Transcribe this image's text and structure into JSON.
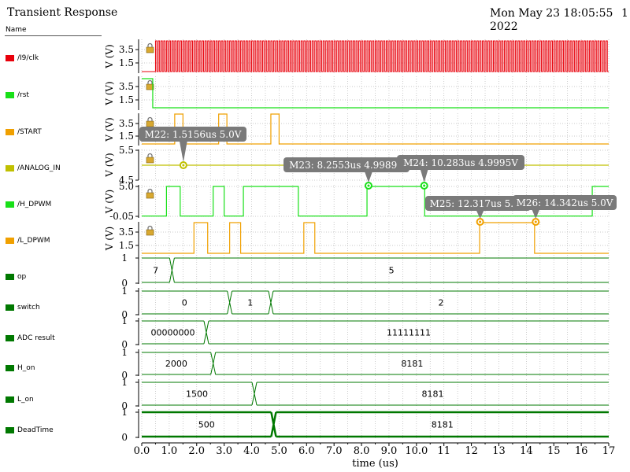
{
  "header": {
    "title": "Transient Response",
    "timestamp_line1": "Mon May 23 18:05:55",
    "timestamp_line2": "2022",
    "page_number": "1",
    "legend_header": "Name"
  },
  "legend": [
    {
      "label": "/I9/clk",
      "color": "#e8000b"
    },
    {
      "label": "/rst",
      "color": "#18e018"
    },
    {
      "label": "/START",
      "color": "#f0a000"
    },
    {
      "label": "/ANALOG_IN",
      "color": "#c0c000"
    },
    {
      "label": "/H_DPWM",
      "color": "#18e018"
    },
    {
      "label": "/L_DPWM",
      "color": "#f0a000"
    },
    {
      "label": "op",
      "color": "#007800"
    },
    {
      "label": "switch",
      "color": "#007800"
    },
    {
      "label": "ADC result",
      "color": "#007800"
    },
    {
      "label": "H_on",
      "color": "#007800"
    },
    {
      "label": "L_on",
      "color": "#007800"
    },
    {
      "label": "DeadTime",
      "color": "#007800"
    }
  ],
  "chart_data": {
    "type": "line",
    "xlabel": "time (us)",
    "xlim": [
      0,
      17
    ],
    "xticks": [
      "0.0",
      "0.5",
      "1.0",
      "1.5",
      "2.0",
      "2.5",
      "3.0",
      "3.5",
      "4.0",
      "4.5",
      "5.0",
      "5.5",
      "6.0",
      "6.5",
      "7.0",
      "7.5",
      "8.0",
      "8.5",
      "9.0",
      "9.5",
      "10.0",
      "10.5",
      "11",
      "11.5",
      "12",
      "12.5",
      "13",
      "13.5",
      "14",
      "14.5",
      "15",
      "15.5",
      "16",
      "16.5",
      "17"
    ],
    "analog_panels": [
      {
        "name": "/I9/clk",
        "color": "#e8000b",
        "ylabel": "V (V)",
        "yticks": [
          "3.5",
          "1.5"
        ],
        "ylim": [
          0,
          5
        ],
        "clock": {
          "start": 0.5,
          "period": 0.1,
          "high": 5,
          "low": 0,
          "initial_low_from": 0
        }
      },
      {
        "name": "/rst",
        "color": "#18e018",
        "ylabel": "V (V)",
        "yticks": [
          "3.5",
          "1.5"
        ],
        "ylim": [
          0,
          5
        ],
        "steps": [
          [
            0,
            5
          ],
          [
            0.4,
            0
          ]
        ]
      },
      {
        "name": "/START",
        "color": "#f0a000",
        "ylabel": "V (V)",
        "yticks": [
          "3.5",
          "1.5"
        ],
        "ylim": [
          0,
          5
        ],
        "steps": [
          [
            0,
            0
          ],
          [
            1.2,
            5
          ],
          [
            1.5,
            0
          ],
          [
            2.8,
            5
          ],
          [
            3.1,
            0
          ],
          [
            4.7,
            5
          ],
          [
            5.0,
            0
          ]
        ]
      },
      {
        "name": "/ANALOG_IN",
        "color": "#c0c000",
        "ylabel": "V (V)",
        "yticks": [
          "5.5",
          "4.5"
        ],
        "ylim": [
          4.4,
          5.6
        ],
        "steps": [
          [
            0,
            5.0
          ]
        ]
      },
      {
        "name": "/H_DPWM",
        "color": "#18e018",
        "ylabel": "V (V)",
        "yticks": [
          "5.0",
          "-0.05"
        ],
        "ylim": [
          -0.05,
          5
        ],
        "steps": [
          [
            0,
            0
          ],
          [
            0.9,
            5
          ],
          [
            1.4,
            0
          ],
          [
            2.6,
            5
          ],
          [
            3.0,
            0
          ],
          [
            3.7,
            5
          ],
          [
            5.7,
            0
          ],
          [
            8.2,
            5
          ],
          [
            10.3,
            0
          ],
          [
            16.4,
            5
          ]
        ]
      },
      {
        "name": "/L_DPWM",
        "color": "#f0a000",
        "ylabel": "V (V)",
        "yticks": [
          "3.5",
          "1.5"
        ],
        "ylim": [
          0,
          5
        ],
        "steps": [
          [
            0,
            0
          ],
          [
            1.9,
            5
          ],
          [
            2.4,
            0
          ],
          [
            3.2,
            5
          ],
          [
            3.6,
            0
          ],
          [
            5.9,
            5
          ],
          [
            6.3,
            0
          ],
          [
            12.3,
            5
          ],
          [
            14.3,
            0
          ]
        ]
      }
    ],
    "digital_panels": [
      {
        "name": "op",
        "yticks": [
          "1",
          "0"
        ],
        "segments": [
          {
            "from": 0,
            "to": 1.1,
            "value": "7"
          },
          {
            "from": 1.1,
            "to": 17,
            "value": "5"
          }
        ]
      },
      {
        "name": "switch",
        "yticks": [
          "1",
          "0"
        ],
        "segments": [
          {
            "from": 0,
            "to": 3.2,
            "value": "0"
          },
          {
            "from": 3.2,
            "to": 4.7,
            "value": "1"
          },
          {
            "from": 4.7,
            "to": 17,
            "value": "2"
          }
        ]
      },
      {
        "name": "ADC result",
        "yticks": [
          "1",
          "0"
        ],
        "segments": [
          {
            "from": 0,
            "to": 2.35,
            "value": "00000000"
          },
          {
            "from": 2.35,
            "to": 17,
            "value": "11111111"
          }
        ]
      },
      {
        "name": "H_on",
        "yticks": [
          "1",
          "0"
        ],
        "segments": [
          {
            "from": 0,
            "to": 2.6,
            "value": "2000"
          },
          {
            "from": 2.6,
            "to": 17,
            "value": "8181"
          }
        ]
      },
      {
        "name": "L_on",
        "yticks": [
          "1",
          "0"
        ],
        "segments": [
          {
            "from": 0,
            "to": 4.1,
            "value": "1500"
          },
          {
            "from": 4.1,
            "to": 17,
            "value": "8181"
          }
        ]
      },
      {
        "name": "DeadTime",
        "yticks": [
          "1",
          "0"
        ],
        "bold": true,
        "segments": [
          {
            "from": 0,
            "to": 4.8,
            "value": "500"
          },
          {
            "from": 4.8,
            "to": 17,
            "value": "8181"
          }
        ]
      }
    ],
    "markers": [
      {
        "label": "M22: 1.5156us 5.0V",
        "panel": 3,
        "x": 1.5156,
        "color": "#c0c000"
      },
      {
        "label": "M23: 8.2553us 4.9989V",
        "panel": 4,
        "x": 8.2553,
        "color": "#18e018"
      },
      {
        "label": "M24: 10.283us 4.9995V",
        "panel": 4,
        "x": 10.283,
        "color": "#18e018"
      },
      {
        "label": "M25: 12.317us 5.0V",
        "panel": 5,
        "x": 12.317,
        "color": "#f0a000"
      },
      {
        "label": "M26: 14.342us 5.0V",
        "panel": 5,
        "x": 14.342,
        "color": "#f0a000"
      }
    ]
  }
}
